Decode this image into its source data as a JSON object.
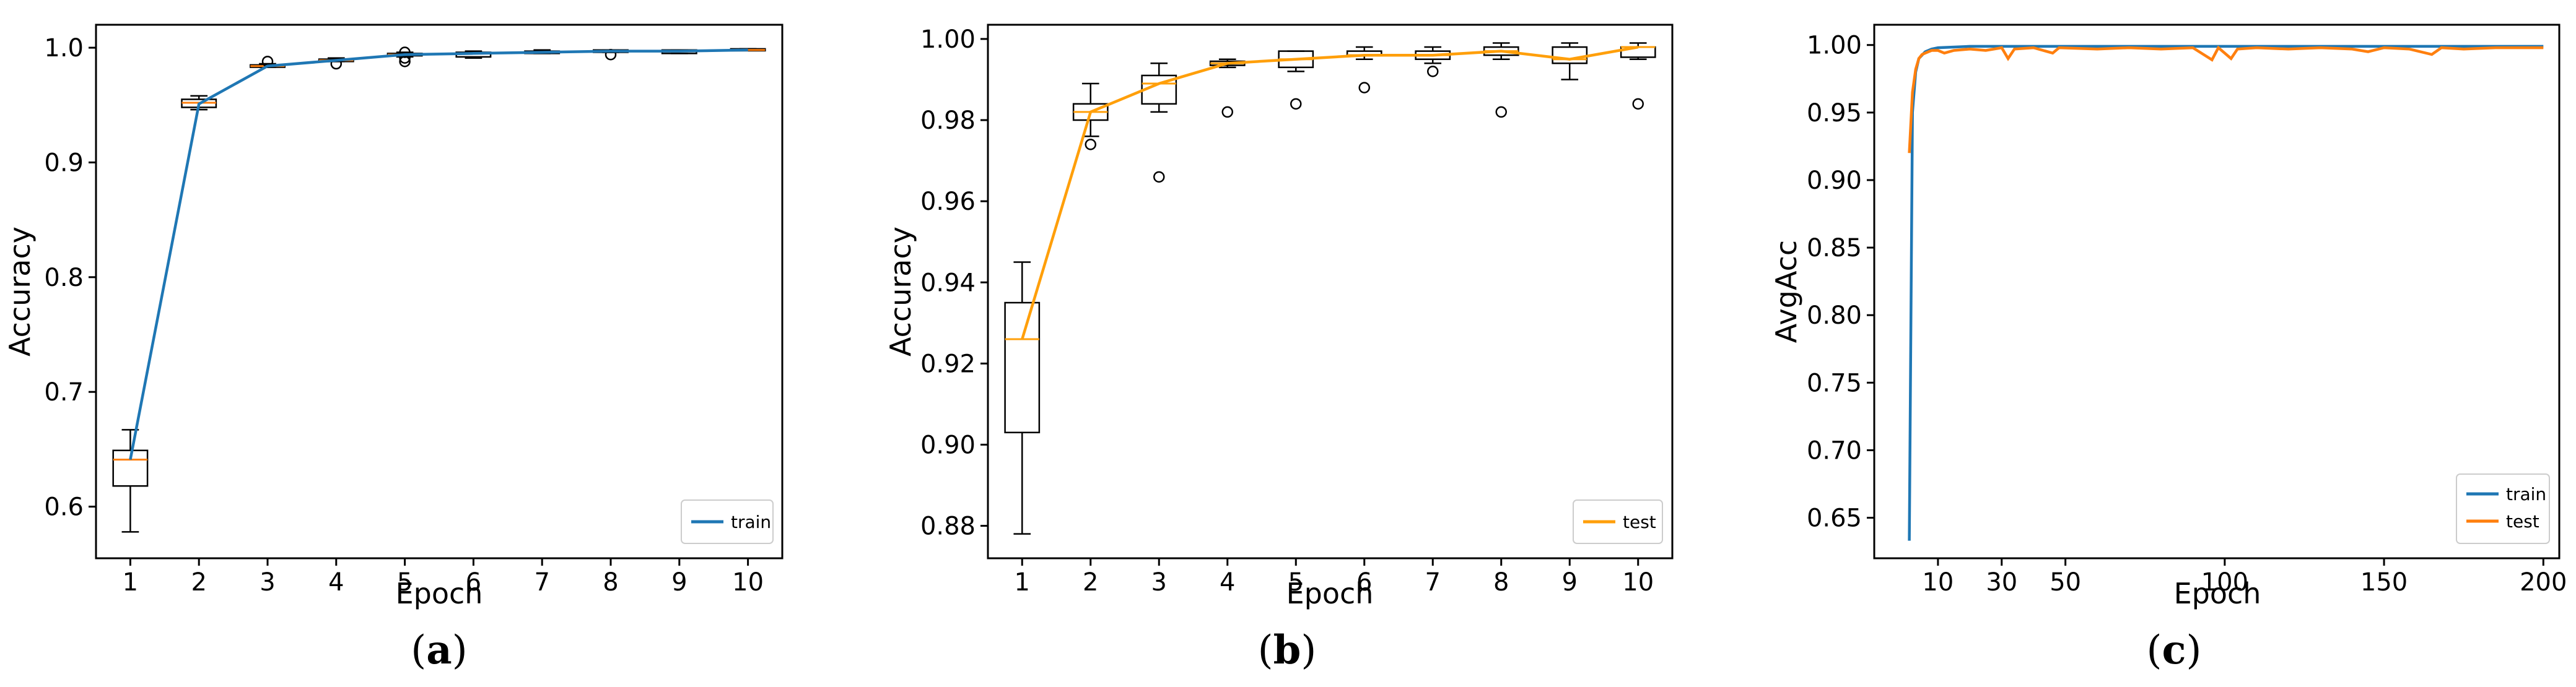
{
  "chart_data": [
    {
      "id": "a",
      "type": "box+line",
      "caption_letter": "a",
      "xlabel": "Epoch",
      "ylabel": "Accuracy",
      "xlim": [
        0.5,
        10.5
      ],
      "ylim": [
        0.555,
        1.02
      ],
      "xticks": [
        1,
        2,
        3,
        4,
        5,
        6,
        7,
        8,
        9,
        10
      ],
      "yticks": [
        0.6,
        0.7,
        0.8,
        0.9,
        1.0
      ],
      "ytick_labels": [
        "0.6",
        "0.7",
        "0.8",
        "0.9",
        "1.0"
      ],
      "legend": {
        "label": "train",
        "color": "#1f77b4",
        "position": "lower-right"
      },
      "line_color": "#1f77b4",
      "median_color": "#ff7f0e",
      "series": [
        {
          "name": "train",
          "x": [
            1,
            2,
            3,
            4,
            5,
            6,
            7,
            8,
            9,
            10
          ],
          "values": [
            0.641,
            0.951,
            0.984,
            0.989,
            0.994,
            0.995,
            0.996,
            0.997,
            0.997,
            0.998
          ]
        }
      ],
      "boxes": [
        {
          "x": 1,
          "wlo": 0.578,
          "q1": 0.618,
          "med": 0.641,
          "q3": 0.649,
          "whi": 0.667,
          "fliers": []
        },
        {
          "x": 2,
          "wlo": 0.946,
          "q1": 0.948,
          "med": 0.952,
          "q3": 0.955,
          "whi": 0.958,
          "fliers": []
        },
        {
          "x": 3,
          "wlo": 0.983,
          "q1": 0.983,
          "med": 0.984,
          "q3": 0.985,
          "whi": 0.986,
          "fliers": [
            0.988
          ]
        },
        {
          "x": 4,
          "wlo": 0.988,
          "q1": 0.988,
          "med": 0.989,
          "q3": 0.99,
          "whi": 0.991,
          "fliers": [
            0.986
          ]
        },
        {
          "x": 5,
          "wlo": 0.992,
          "q1": 0.993,
          "med": 0.994,
          "q3": 0.995,
          "whi": 0.996,
          "fliers": [
            0.988,
            0.991,
            0.996
          ]
        },
        {
          "x": 6,
          "wlo": 0.991,
          "q1": 0.992,
          "med": 0.995,
          "q3": 0.996,
          "whi": 0.997,
          "fliers": []
        },
        {
          "x": 7,
          "wlo": 0.995,
          "q1": 0.995,
          "med": 0.996,
          "q3": 0.997,
          "whi": 0.998,
          "fliers": []
        },
        {
          "x": 8,
          "wlo": 0.996,
          "q1": 0.996,
          "med": 0.997,
          "q3": 0.998,
          "whi": 0.998,
          "fliers": [
            0.994
          ]
        },
        {
          "x": 9,
          "wlo": 0.995,
          "q1": 0.995,
          "med": 0.997,
          "q3": 0.998,
          "whi": 0.998,
          "fliers": []
        },
        {
          "x": 10,
          "wlo": 0.998,
          "q1": 0.998,
          "med": 0.998,
          "q3": 0.999,
          "whi": 0.999,
          "fliers": []
        }
      ]
    },
    {
      "id": "b",
      "type": "box+line",
      "caption_letter": "b",
      "xlabel": "Epoch",
      "ylabel": "Accuracy",
      "xlim": [
        0.5,
        10.5
      ],
      "ylim": [
        0.872,
        1.0035
      ],
      "xticks": [
        1,
        2,
        3,
        4,
        5,
        6,
        7,
        8,
        9,
        10
      ],
      "yticks": [
        0.88,
        0.9,
        0.92,
        0.94,
        0.96,
        0.98,
        1.0
      ],
      "ytick_labels": [
        "0.88",
        "0.90",
        "0.92",
        "0.94",
        "0.96",
        "0.98",
        "1.00"
      ],
      "legend": {
        "label": "test",
        "color": "#ff9f0a",
        "position": "lower-right"
      },
      "line_color": "#ff9f0a",
      "median_color": "#ff9f0a",
      "series": [
        {
          "name": "test",
          "x": [
            1,
            2,
            3,
            4,
            5,
            6,
            7,
            8,
            9,
            10
          ],
          "values": [
            0.926,
            0.982,
            0.989,
            0.994,
            0.995,
            0.996,
            0.996,
            0.997,
            0.995,
            0.998
          ]
        }
      ],
      "boxes": [
        {
          "x": 1,
          "wlo": 0.878,
          "q1": 0.903,
          "med": 0.926,
          "q3": 0.935,
          "whi": 0.945,
          "fliers": []
        },
        {
          "x": 2,
          "wlo": 0.976,
          "q1": 0.98,
          "med": 0.982,
          "q3": 0.984,
          "whi": 0.989,
          "fliers": [
            0.974
          ]
        },
        {
          "x": 3,
          "wlo": 0.982,
          "q1": 0.984,
          "med": 0.989,
          "q3": 0.991,
          "whi": 0.994,
          "fliers": [
            0.966
          ]
        },
        {
          "x": 4,
          "wlo": 0.993,
          "q1": 0.9935,
          "med": 0.994,
          "q3": 0.9945,
          "whi": 0.995,
          "fliers": [
            0.982
          ]
        },
        {
          "x": 5,
          "wlo": 0.992,
          "q1": 0.993,
          "med": 0.995,
          "q3": 0.997,
          "whi": 0.997,
          "fliers": [
            0.984
          ]
        },
        {
          "x": 6,
          "wlo": 0.995,
          "q1": 0.996,
          "med": 0.996,
          "q3": 0.997,
          "whi": 0.998,
          "fliers": [
            0.988
          ]
        },
        {
          "x": 7,
          "wlo": 0.994,
          "q1": 0.995,
          "med": 0.996,
          "q3": 0.997,
          "whi": 0.998,
          "fliers": [
            0.992
          ]
        },
        {
          "x": 8,
          "wlo": 0.995,
          "q1": 0.996,
          "med": 0.997,
          "q3": 0.998,
          "whi": 0.999,
          "fliers": [
            0.982
          ]
        },
        {
          "x": 9,
          "wlo": 0.99,
          "q1": 0.994,
          "med": 0.995,
          "q3": 0.998,
          "whi": 0.999,
          "fliers": []
        },
        {
          "x": 10,
          "wlo": 0.995,
          "q1": 0.9955,
          "med": 0.998,
          "q3": 0.998,
          "whi": 0.999,
          "fliers": [
            0.984
          ]
        }
      ]
    },
    {
      "id": "c",
      "type": "line",
      "caption_letter": "c",
      "xlabel": "Epoch",
      "ylabel": "AvgAcc",
      "xlim": [
        -10,
        205
      ],
      "ylim": [
        0.62,
        1.015
      ],
      "xticks": [
        10,
        30,
        50,
        100,
        150,
        200
      ],
      "yticks": [
        0.65,
        0.7,
        0.75,
        0.8,
        0.85,
        0.9,
        0.95,
        1.0
      ],
      "ytick_labels": [
        "0.65",
        "0.70",
        "0.75",
        "0.80",
        "0.85",
        "0.90",
        "0.95",
        "1.00"
      ],
      "series": [
        {
          "name": "train",
          "color": "#1f77b4",
          "points": [
            [
              1,
              0.633
            ],
            [
              2,
              0.95
            ],
            [
              3,
              0.98
            ],
            [
              4,
              0.99
            ],
            [
              6,
              0.995
            ],
            [
              8,
              0.997
            ],
            [
              10,
              0.998
            ],
            [
              20,
              0.999
            ],
            [
              30,
              0.999
            ],
            [
              50,
              0.999
            ],
            [
              75,
              0.999
            ],
            [
              100,
              0.999
            ],
            [
              125,
              0.999
            ],
            [
              150,
              0.999
            ],
            [
              175,
              0.999
            ],
            [
              200,
              0.999
            ]
          ]
        },
        {
          "name": "test",
          "color": "#ff7f0e",
          "points": [
            [
              1,
              0.92
            ],
            [
              2,
              0.965
            ],
            [
              3,
              0.982
            ],
            [
              4,
              0.99
            ],
            [
              5,
              0.993
            ],
            [
              6,
              0.994
            ],
            [
              8,
              0.996
            ],
            [
              10,
              0.996
            ],
            [
              12,
              0.994
            ],
            [
              15,
              0.996
            ],
            [
              20,
              0.997
            ],
            [
              25,
              0.996
            ],
            [
              30,
              0.998
            ],
            [
              32,
              0.99
            ],
            [
              34,
              0.997
            ],
            [
              40,
              0.998
            ],
            [
              46,
              0.994
            ],
            [
              48,
              0.998
            ],
            [
              60,
              0.997
            ],
            [
              70,
              0.998
            ],
            [
              80,
              0.997
            ],
            [
              90,
              0.998
            ],
            [
              96,
              0.989
            ],
            [
              98,
              0.998
            ],
            [
              102,
              0.99
            ],
            [
              104,
              0.997
            ],
            [
              110,
              0.998
            ],
            [
              120,
              0.997
            ],
            [
              130,
              0.998
            ],
            [
              140,
              0.997
            ],
            [
              145,
              0.995
            ],
            [
              150,
              0.998
            ],
            [
              158,
              0.997
            ],
            [
              165,
              0.993
            ],
            [
              168,
              0.998
            ],
            [
              175,
              0.997
            ],
            [
              185,
              0.998
            ],
            [
              195,
              0.998
            ],
            [
              200,
              0.998
            ]
          ]
        }
      ]
    }
  ]
}
